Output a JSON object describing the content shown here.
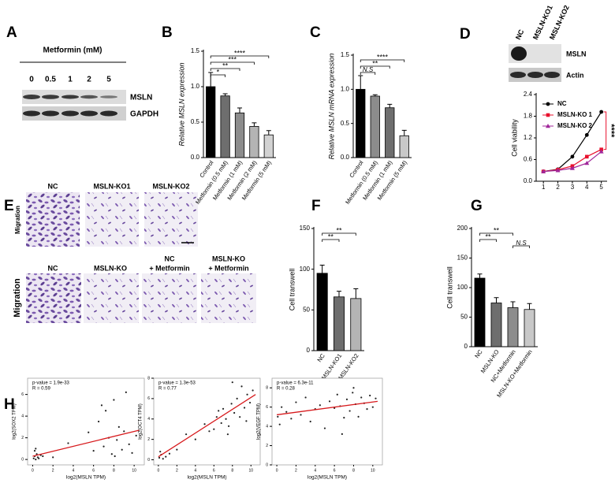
{
  "blot_A": {
    "panel": "A",
    "treatment": "Metformin (mM)",
    "lanes": [
      "0",
      "0.5",
      "1",
      "2",
      "5"
    ],
    "rows": [
      "MSLN",
      "GAPDH"
    ]
  },
  "blot_D": {
    "panel": "D",
    "lanes": [
      "NC",
      "MSLN-KO1",
      "MSLN-KO2"
    ],
    "rows": [
      "MSLN",
      "Actin"
    ]
  },
  "images_E": {
    "panel": "E",
    "row_labels": [
      "Migration",
      "Migration"
    ],
    "top": [
      "NC",
      "MSLN-KO1",
      "MSLN-KO2"
    ],
    "bottom": [
      [
        "NC"
      ],
      [
        "MSLN-KO"
      ],
      [
        "NC",
        "+ Metformin"
      ],
      [
        "MSLN-KO",
        "+ Metformin"
      ]
    ]
  },
  "chart_data": [
    {
      "type": "bar",
      "panel": "B",
      "ylabel": "Relative MSLN expression",
      "categories": [
        "Control",
        "Metformin (0.5 mM)",
        "Metformin (1 mM)",
        "Metformin (2 mM)",
        "Metformin (5 mM)"
      ],
      "values": [
        1.0,
        0.87,
        0.63,
        0.44,
        0.32
      ],
      "errors": [
        0.2,
        0.03,
        0.07,
        0.05,
        0.06
      ],
      "colors": [
        "#000000",
        "#6e6e6e",
        "#8c8c8c",
        "#b4b4b4",
        "#d2d2d2"
      ],
      "ylim": [
        0,
        1.5
      ],
      "yticks": [
        {
          "value": 0,
          "label": "0.0"
        },
        0.5,
        {
          "value": 1,
          "label": "1.0"
        },
        1.5
      ],
      "annotations": [
        {
          "text": "****",
          "from": 0,
          "to": 4
        },
        {
          "text": "***",
          "from": 0,
          "to": 3
        },
        {
          "text": "**",
          "from": 0,
          "to": 2
        },
        {
          "text": "*",
          "from": 0,
          "to": 1
        }
      ]
    },
    {
      "type": "bar",
      "panel": "C",
      "ylabel": "Relative MSLN mRNA expression",
      "categories": [
        "Control",
        "Metformin (0.5 mM)",
        "Metformin (1 mM)",
        "Metformin (5 mM)"
      ],
      "values": [
        1.0,
        0.9,
        0.73,
        0.32
      ],
      "errors": [
        0.2,
        0.02,
        0.05,
        0.08
      ],
      "colors": [
        "#000000",
        "#8c8c8c",
        "#6e6e6e",
        "#c8c8c8"
      ],
      "ylim": [
        0,
        1.5
      ],
      "yticks": [
        {
          "value": 0,
          "label": "0.0"
        },
        0.5,
        {
          "value": 1,
          "label": "1.0"
        },
        1.5
      ],
      "annotations": [
        {
          "text": "****",
          "from": 0,
          "to": 3
        },
        {
          "text": "**",
          "from": 0,
          "to": 2
        },
        {
          "text": "N.S",
          "from": 0,
          "to": 1
        }
      ]
    },
    {
      "type": "line",
      "ylabel": "Cell viability",
      "x": [
        1,
        2,
        3,
        4,
        5
      ],
      "xlim": [
        0.5,
        5.4
      ],
      "xticks": [
        1,
        2,
        3,
        4,
        5
      ],
      "ylim": [
        0,
        2.4
      ],
      "yticks": [
        {
          "value": 0,
          "label": "0.0"
        },
        0.6,
        1.2,
        1.8,
        2.4
      ],
      "series": [
        {
          "name": "NC",
          "color": "#000000",
          "marker": "circle",
          "values": [
            0.27,
            0.33,
            0.68,
            1.28,
            1.92
          ]
        },
        {
          "name": "MSLN-KO 1",
          "color": "#e8112d",
          "marker": "square",
          "values": [
            0.27,
            0.32,
            0.42,
            0.68,
            0.88
          ]
        },
        {
          "name": "MSLN-KO 2",
          "color": "#a0279a",
          "marker": "triangle",
          "values": [
            0.27,
            0.3,
            0.36,
            0.5,
            0.82
          ]
        }
      ],
      "annotations": [
        {
          "text": "****",
          "from": 0,
          "to": 1,
          "color": "#e8112d"
        }
      ]
    },
    {
      "type": "bar",
      "panel": "F",
      "ylabel": "Cell transwell",
      "categories": [
        "NC",
        "MSLN-KO1",
        "MSLN-KO2"
      ],
      "values": [
        95,
        66,
        64
      ],
      "errors": [
        10,
        7,
        12
      ],
      "colors": [
        "#000000",
        "#6e6e6e",
        "#b4b4b4"
      ],
      "ylim": [
        0,
        150
      ],
      "yticks": [
        0,
        50,
        100,
        150
      ],
      "annotations": [
        {
          "text": "**",
          "from": 0,
          "to": 2
        },
        {
          "text": "**",
          "from": 0,
          "to": 1
        }
      ]
    },
    {
      "type": "bar",
      "panel": "G",
      "ylabel": "Cell transwell",
      "categories": [
        "NC",
        "MSLN-KO",
        "NC+Metformin",
        "MSLN-KO+Metformin"
      ],
      "values": [
        116,
        74,
        66,
        63
      ],
      "errors": [
        7,
        9,
        10,
        10
      ],
      "colors": [
        "#000000",
        "#6e6e6e",
        "#8c8c8c",
        "#c8c8c8"
      ],
      "ylim": [
        0,
        200
      ],
      "yticks": [
        0,
        50,
        100,
        150,
        200
      ],
      "annotations": [
        {
          "text": "**",
          "from": 0,
          "to": 2
        },
        {
          "text": "**",
          "from": 0,
          "to": 1
        },
        {
          "text": "N.S",
          "from": 2,
          "to": 3
        }
      ]
    },
    {
      "type": "scatter",
      "panel": "H",
      "stat": "p-value = 1.9e-33",
      "r": "R = 0.59",
      "xlabel": "log2(MSLN TPM)",
      "ylabel": "log2(SOX2 TPM)",
      "xlim": [
        -0.5,
        11
      ],
      "xticks": [
        0,
        2,
        4,
        6,
        8,
        10
      ],
      "ylim": [
        -0.5,
        7.5
      ],
      "yticks": [
        0,
        2,
        4,
        6
      ],
      "x": [
        0.1,
        0.2,
        0.3,
        0.4,
        0.5,
        0.2,
        0.6,
        0.8,
        1.0,
        0.3,
        2.0,
        3.5,
        5.5,
        6.0,
        6.5,
        7.0,
        7.2,
        7.5,
        7.8,
        8.0,
        8.3,
        8.5,
        8.8,
        9.0,
        9.2,
        9.5,
        9.8,
        10.2,
        6.8,
        8.1
      ],
      "y": [
        0.1,
        0.3,
        0.0,
        0.5,
        0.2,
        0.8,
        0.1,
        0.4,
        0.3,
        1.0,
        0.2,
        1.5,
        2.5,
        0.8,
        3.5,
        1.2,
        4.5,
        2.0,
        0.5,
        5.5,
        1.8,
        3.0,
        0.9,
        2.6,
        6.2,
        1.4,
        0.6,
        2.2,
        5.0,
        0.3
      ],
      "point_color": "#222222",
      "fit": {
        "color": "#d7191c",
        "x": [
          0,
          10.5
        ],
        "y": [
          0.3,
          2.7
        ]
      }
    },
    {
      "type": "scatter",
      "stat": "p-value = 1.3e-53",
      "r": "R = 0.77",
      "xlabel": "log2(MSLN TPM)",
      "ylabel": "log2(OCT4 TPM)",
      "xlim": [
        -0.5,
        11
      ],
      "xticks": [
        0,
        2,
        4,
        6,
        8,
        10
      ],
      "ylim": [
        -0.5,
        8
      ],
      "yticks": [
        0,
        2,
        4,
        6,
        8
      ],
      "x": [
        0.1,
        0.3,
        0.5,
        0.2,
        0.8,
        1.2,
        2.0,
        3.0,
        4.0,
        5.0,
        5.5,
        6.0,
        6.3,
        6.8,
        7.0,
        7.3,
        7.6,
        7.9,
        8.2,
        8.5,
        8.8,
        9.0,
        9.3,
        9.6,
        9.9,
        10.2,
        7.5,
        8.0,
        6.5,
        9.5
      ],
      "y": [
        0.2,
        0.5,
        0.1,
        0.8,
        0.3,
        0.6,
        1.0,
        2.5,
        2.0,
        3.5,
        2.8,
        3.0,
        4.2,
        3.6,
        5.0,
        4.0,
        3.3,
        5.5,
        4.6,
        6.0,
        4.2,
        7.2,
        5.1,
        6.4,
        5.6,
        6.8,
        2.5,
        7.6,
        4.8,
        3.8
      ],
      "point_color": "#222222",
      "fit": {
        "color": "#d7191c",
        "x": [
          0,
          10.5
        ],
        "y": [
          0.3,
          6.4
        ]
      }
    },
    {
      "type": "scatter",
      "stat": "p-value = 6.3e-11",
      "r": "R = 0.28",
      "xlabel": "log2(MSLN TPM)",
      "ylabel": "log2(VEGF TPM)",
      "xlim": [
        -0.5,
        11
      ],
      "xticks": [
        0,
        2,
        4,
        6,
        8,
        10
      ],
      "ylim": [
        0,
        9
      ],
      "yticks": [
        0,
        2,
        4,
        6,
        8
      ],
      "x": [
        0.1,
        0.3,
        0.5,
        1.0,
        1.5,
        2.0,
        2.5,
        3.0,
        3.5,
        4.0,
        4.5,
        5.0,
        5.5,
        6.0,
        6.3,
        6.6,
        7.0,
        7.3,
        7.6,
        7.9,
        8.2,
        8.5,
        8.8,
        9.1,
        9.4,
        9.7,
        10.0,
        10.3,
        6.8,
        8.0
      ],
      "y": [
        5.0,
        4.2,
        6.0,
        5.5,
        4.8,
        6.5,
        5.2,
        7.0,
        4.5,
        5.8,
        6.2,
        3.8,
        6.6,
        5.9,
        7.3,
        6.1,
        4.9,
        6.8,
        5.6,
        7.5,
        6.3,
        5.0,
        7.0,
        6.4,
        5.8,
        7.2,
        6.0,
        6.9,
        3.2,
        8.0
      ],
      "point_color": "#222222",
      "fit": {
        "color": "#d7191c",
        "x": [
          0,
          10.5
        ],
        "y": [
          5.2,
          6.6
        ]
      }
    }
  ]
}
